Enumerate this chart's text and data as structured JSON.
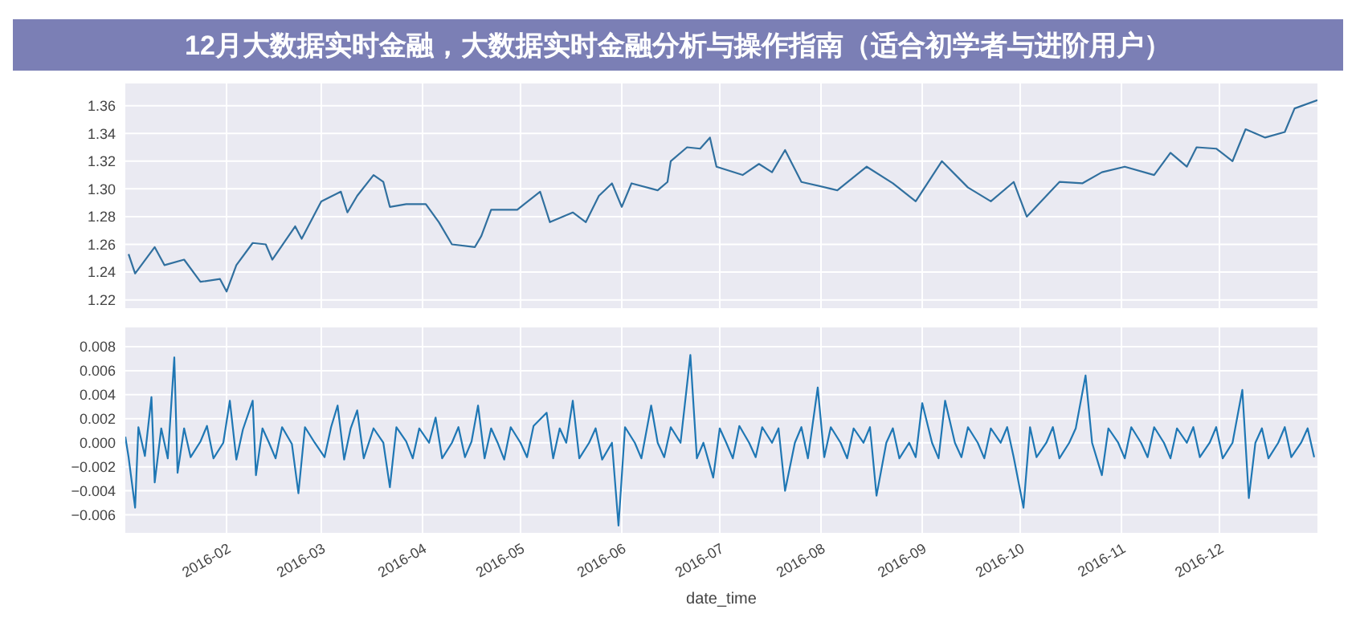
{
  "chart_data": [
    {
      "type": "line",
      "title": "12月大数据实时金融，大数据实时金融分析与操作指南（适合初学者与进阶用户）",
      "tick_labels": "y",
      "grid": true,
      "xlim": [
        "2016-01-01",
        "2016-12-31"
      ],
      "xticks": [
        "2016-02",
        "2016-03",
        "2016-04",
        "2016-05",
        "2016-06",
        "2016-07",
        "2016-08",
        "2016-09",
        "2016-10",
        "2016-11",
        "2016-12"
      ],
      "ylim": [
        1.214,
        1.376
      ],
      "yticks": [
        {
          "value": 1.22,
          "label": "1.22"
        },
        {
          "value": 1.24,
          "label": "1.24"
        },
        {
          "value": 1.26,
          "label": "1.26"
        },
        {
          "value": 1.28,
          "label": "1.28"
        },
        {
          "value": 1.3,
          "label": "1.30"
        },
        {
          "value": 1.32,
          "label": "1.32"
        },
        {
          "value": 1.34,
          "label": "1.34"
        },
        {
          "value": 1.36,
          "label": "1.36"
        }
      ],
      "series": [
        {
          "color": "#31709f",
          "x": [
            "2016-01-02",
            "2016-01-04",
            "2016-01-10",
            "2016-01-13",
            "2016-01-19",
            "2016-01-24",
            "2016-01-30",
            "2016-02-01",
            "2016-02-04",
            "2016-02-09",
            "2016-02-13",
            "2016-02-15",
            "2016-02-22",
            "2016-02-24",
            "2016-03-01",
            "2016-03-07",
            "2016-03-09",
            "2016-03-12",
            "2016-03-17",
            "2016-03-20",
            "2016-03-22",
            "2016-03-27",
            "2016-04-02",
            "2016-04-06",
            "2016-04-10",
            "2016-04-17",
            "2016-04-19",
            "2016-04-22",
            "2016-04-30",
            "2016-05-07",
            "2016-05-10",
            "2016-05-17",
            "2016-05-21",
            "2016-05-25",
            "2016-05-29",
            "2016-06-01",
            "2016-06-04",
            "2016-06-12",
            "2016-06-15",
            "2016-06-16",
            "2016-06-21",
            "2016-06-25",
            "2016-06-28",
            "2016-06-30",
            "2016-07-08",
            "2016-07-13",
            "2016-07-17",
            "2016-07-21",
            "2016-07-26",
            "2016-08-06",
            "2016-08-15",
            "2016-08-23",
            "2016-08-30",
            "2016-09-07",
            "2016-09-15",
            "2016-09-22",
            "2016-09-29",
            "2016-10-03",
            "2016-10-13",
            "2016-10-20",
            "2016-10-26",
            "2016-11-02",
            "2016-11-11",
            "2016-11-16",
            "2016-11-21",
            "2016-11-24",
            "2016-11-30",
            "2016-12-05",
            "2016-12-09",
            "2016-12-15",
            "2016-12-21",
            "2016-12-24",
            "2016-12-31"
          ],
          "values": [
            1.253,
            1.239,
            1.258,
            1.245,
            1.249,
            1.233,
            1.235,
            1.226,
            1.245,
            1.261,
            1.26,
            1.249,
            1.273,
            1.264,
            1.291,
            1.298,
            1.283,
            1.295,
            1.31,
            1.305,
            1.287,
            1.289,
            1.289,
            1.276,
            1.26,
            1.258,
            1.266,
            1.285,
            1.285,
            1.298,
            1.276,
            1.283,
            1.276,
            1.295,
            1.304,
            1.287,
            1.304,
            1.299,
            1.305,
            1.32,
            1.33,
            1.329,
            1.337,
            1.316,
            1.31,
            1.318,
            1.312,
            1.328,
            1.305,
            1.299,
            1.316,
            1.304,
            1.291,
            1.32,
            1.301,
            1.291,
            1.305,
            1.28,
            1.305,
            1.304,
            1.312,
            1.316,
            1.31,
            1.326,
            1.316,
            1.33,
            1.329,
            1.32,
            1.343,
            1.337,
            1.341,
            1.358,
            1.364
          ]
        }
      ]
    },
    {
      "type": "line",
      "xlabel": "date_time",
      "grid": true,
      "xlim": [
        "2016-01-01",
        "2016-12-31"
      ],
      "xticks": [
        "2016-02",
        "2016-03",
        "2016-04",
        "2016-05",
        "2016-06",
        "2016-07",
        "2016-08",
        "2016-09",
        "2016-10",
        "2016-11",
        "2016-12"
      ],
      "ylim": [
        -0.0075,
        0.0096
      ],
      "yticks": [
        {
          "value": -0.006,
          "label": "−0.006"
        },
        {
          "value": -0.004,
          "label": "−0.004"
        },
        {
          "value": -0.002,
          "label": "−0.002"
        },
        {
          "value": 0,
          "label": "0.000"
        },
        {
          "value": 0.002,
          "label": "0.002"
        },
        {
          "value": 0.004,
          "label": "0.004"
        },
        {
          "value": 0.006,
          "label": "0.006"
        },
        {
          "value": 0.008,
          "label": "0.008"
        }
      ],
      "series": [
        {
          "color": "#1f77b4",
          "x": [
            "2016-01-01",
            "2016-01-02",
            "2016-01-04",
            "2016-01-05",
            "2016-01-07",
            "2016-01-09",
            "2016-01-10",
            "2016-01-12",
            "2016-01-14",
            "2016-01-16",
            "2016-01-17",
            "2016-01-19",
            "2016-01-21",
            "2016-01-24",
            "2016-01-26",
            "2016-01-28",
            "2016-01-31",
            "2016-02-02",
            "2016-02-04",
            "2016-02-06",
            "2016-02-09",
            "2016-02-10",
            "2016-02-12",
            "2016-02-14",
            "2016-02-16",
            "2016-02-18",
            "2016-02-21",
            "2016-02-23",
            "2016-02-25",
            "2016-02-28",
            "2016-03-02",
            "2016-03-04",
            "2016-03-06",
            "2016-03-08",
            "2016-03-10",
            "2016-03-12",
            "2016-03-14",
            "2016-03-17",
            "2016-03-20",
            "2016-03-22",
            "2016-03-24",
            "2016-03-27",
            "2016-03-29",
            "2016-03-31",
            "2016-04-03",
            "2016-04-05",
            "2016-04-07",
            "2016-04-10",
            "2016-04-12",
            "2016-04-14",
            "2016-04-16",
            "2016-04-18",
            "2016-04-20",
            "2016-04-22",
            "2016-04-24",
            "2016-04-26",
            "2016-04-28",
            "2016-05-01",
            "2016-05-03",
            "2016-05-05",
            "2016-05-09",
            "2016-05-11",
            "2016-05-13",
            "2016-05-15",
            "2016-05-17",
            "2016-05-19",
            "2016-05-22",
            "2016-05-24",
            "2016-05-26",
            "2016-05-29",
            "2016-05-31",
            "2016-06-02",
            "2016-06-05",
            "2016-06-07",
            "2016-06-10",
            "2016-06-12",
            "2016-06-14",
            "2016-06-16",
            "2016-06-19",
            "2016-06-22",
            "2016-06-24",
            "2016-06-26",
            "2016-06-29",
            "2016-07-01",
            "2016-07-03",
            "2016-07-05",
            "2016-07-07",
            "2016-07-10",
            "2016-07-12",
            "2016-07-14",
            "2016-07-17",
            "2016-07-19",
            "2016-07-21",
            "2016-07-24",
            "2016-07-26",
            "2016-07-28",
            "2016-07-31",
            "2016-08-02",
            "2016-08-04",
            "2016-08-07",
            "2016-08-09",
            "2016-08-11",
            "2016-08-14",
            "2016-08-16",
            "2016-08-18",
            "2016-08-21",
            "2016-08-23",
            "2016-08-25",
            "2016-08-28",
            "2016-08-30",
            "2016-09-01",
            "2016-09-04",
            "2016-09-06",
            "2016-09-08",
            "2016-09-11",
            "2016-09-13",
            "2016-09-15",
            "2016-09-18",
            "2016-09-20",
            "2016-09-22",
            "2016-09-25",
            "2016-09-27",
            "2016-09-29",
            "2016-10-02",
            "2016-10-04",
            "2016-10-06",
            "2016-10-09",
            "2016-10-11",
            "2016-10-13",
            "2016-10-16",
            "2016-10-18",
            "2016-10-21",
            "2016-10-23",
            "2016-10-26",
            "2016-10-28",
            "2016-10-31",
            "2016-11-02",
            "2016-11-04",
            "2016-11-07",
            "2016-11-09",
            "2016-11-11",
            "2016-11-14",
            "2016-11-16",
            "2016-11-18",
            "2016-11-21",
            "2016-11-23",
            "2016-11-25",
            "2016-11-28",
            "2016-11-30",
            "2016-12-02",
            "2016-12-05",
            "2016-12-08",
            "2016-12-10",
            "2016-12-12",
            "2016-12-14",
            "2016-12-16",
            "2016-12-19",
            "2016-12-21",
            "2016-12-23",
            "2016-12-26",
            "2016-12-28",
            "2016-12-30"
          ],
          "values": [
            0.0005,
            -0.0012,
            -0.0054,
            0.0013,
            -0.0011,
            0.0038,
            -0.0033,
            0.0012,
            -0.0013,
            0.0071,
            -0.0025,
            0.0012,
            -0.0012,
            0.0001,
            0.0014,
            -0.0013,
            0,
            0.0035,
            -0.0014,
            0.0011,
            0.0035,
            -0.0027,
            0.0012,
            0,
            -0.0013,
            0.0013,
            -0.0001,
            -0.0042,
            0.0013,
            0,
            -0.0012,
            0.0013,
            0.0031,
            -0.0014,
            0.0012,
            0.0027,
            -0.0013,
            0.0012,
            0,
            -0.0037,
            0.0013,
            0.0001,
            -0.0013,
            0.0012,
            0,
            0.0021,
            -0.0013,
            0,
            0.0013,
            -0.0012,
            0.0001,
            0.0031,
            -0.0013,
            0.0012,
            0,
            -0.0014,
            0.0013,
            0,
            -0.0012,
            0.0014,
            0.0025,
            -0.0013,
            0.0012,
            0,
            0.0035,
            -0.0013,
            0,
            0.0012,
            -0.0014,
            0,
            -0.0069,
            0.0013,
            0,
            -0.0013,
            0.0031,
            0,
            -0.0012,
            0.0013,
            0,
            0.0073,
            -0.0013,
            0,
            -0.0029,
            0.0012,
            0,
            -0.0013,
            0.0014,
            0,
            -0.0012,
            0.0013,
            0,
            0.0012,
            -0.004,
            0,
            0.0013,
            -0.0013,
            0.0046,
            -0.0012,
            0.0013,
            0,
            -0.0013,
            0.0012,
            0,
            0.0013,
            -0.0044,
            0,
            0.0012,
            -0.0013,
            0,
            -0.0012,
            0.0033,
            0,
            -0.0013,
            0.0035,
            0,
            -0.0012,
            0.0013,
            0,
            -0.0013,
            0.0012,
            0,
            0.0013,
            -0.0012,
            -0.0054,
            0.0013,
            -0.0012,
            0,
            0.0013,
            -0.0013,
            0,
            0.0012,
            0.0056,
            0,
            -0.0027,
            0.0012,
            0,
            -0.0013,
            0.0013,
            0,
            -0.0012,
            0.0013,
            0,
            -0.0013,
            0.0012,
            0,
            0.0013,
            -0.0012,
            0,
            0.0013,
            -0.0013,
            0,
            0.0044,
            -0.0046,
            0,
            0.0012,
            -0.0013,
            0,
            0.0013,
            -0.0012,
            0,
            0.0012,
            -0.0012
          ]
        }
      ]
    }
  ]
}
